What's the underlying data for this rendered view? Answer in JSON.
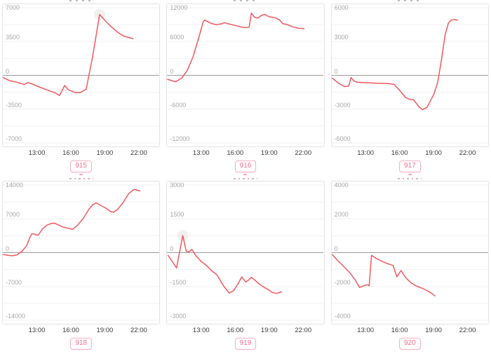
{
  "colors": {
    "line": "#f1585e",
    "zero_line": "#9b9b9b",
    "grid_line": "#f1f1f1",
    "panel_border": "#e3e3e3",
    "y_label": "#a8a8a8",
    "x_label": "#3a3a3a",
    "tag_border": "#f7b0c3",
    "tag_text": "#ee7093",
    "halo": "#ececec"
  },
  "x_axis": {
    "domain_hours": [
      10.0,
      23.8
    ],
    "tick_hours": [
      13,
      16,
      19,
      22
    ],
    "tick_labels": [
      "13:00",
      "16:00",
      "19:00",
      "22:00"
    ]
  },
  "chart_data": [
    {
      "type": "line",
      "tag": "915",
      "ylim": [
        -7000,
        7000
      ],
      "y_ticks": [
        7000,
        3500,
        0,
        -3500,
        -7000
      ],
      "x_tick_labels": [
        "13:00",
        "16:00",
        "19:00",
        "22:00"
      ],
      "halo_point": [
        18.54,
        6300
      ],
      "series": [
        {
          "name": "series-1",
          "points": [
            [
              10.05,
              -250
            ],
            [
              10.6,
              -550
            ],
            [
              11.2,
              -700
            ],
            [
              11.9,
              -950
            ],
            [
              12.2,
              -750
            ],
            [
              12.5,
              -850
            ],
            [
              13.2,
              -1200
            ],
            [
              14.0,
              -1550
            ],
            [
              14.6,
              -1800
            ],
            [
              15.0,
              -2100
            ],
            [
              15.45,
              -1050
            ],
            [
              15.8,
              -1500
            ],
            [
              16.3,
              -1750
            ],
            [
              16.8,
              -1800
            ],
            [
              17.1,
              -1600
            ],
            [
              17.35,
              -1450
            ],
            [
              17.9,
              1800
            ],
            [
              18.54,
              6300
            ],
            [
              19.0,
              5700
            ],
            [
              19.6,
              5000
            ],
            [
              20.2,
              4400
            ],
            [
              20.6,
              4100
            ],
            [
              21.0,
              3950
            ],
            [
              21.5,
              3800
            ]
          ]
        }
      ]
    },
    {
      "type": "line",
      "tag": "916",
      "ylim": [
        -12000,
        12000
      ],
      "y_ticks": [
        12000,
        6000,
        0,
        -6000,
        -12000
      ],
      "x_tick_labels": [
        "13:00",
        "16:00",
        "19:00",
        "22:00"
      ],
      "halo_point": null,
      "series": [
        {
          "name": "series-1",
          "points": [
            [
              10.05,
              -700
            ],
            [
              10.75,
              -1150
            ],
            [
              11.3,
              -500
            ],
            [
              11.8,
              900
            ],
            [
              12.3,
              3300
            ],
            [
              12.8,
              6600
            ],
            [
              13.2,
              9500
            ],
            [
              13.35,
              9800
            ],
            [
              13.8,
              9300
            ],
            [
              14.3,
              9000
            ],
            [
              14.75,
              9100
            ],
            [
              15.1,
              9350
            ],
            [
              15.5,
              9100
            ],
            [
              16.1,
              8800
            ],
            [
              16.6,
              8550
            ],
            [
              17.0,
              8450
            ],
            [
              17.25,
              8550
            ],
            [
              17.45,
              11050
            ],
            [
              17.7,
              10350
            ],
            [
              18.0,
              10150
            ],
            [
              18.35,
              10650
            ],
            [
              18.65,
              10800
            ],
            [
              19.0,
              10400
            ],
            [
              19.5,
              10250
            ],
            [
              19.9,
              9900
            ],
            [
              20.2,
              9200
            ],
            [
              20.6,
              9000
            ],
            [
              21.1,
              8600
            ],
            [
              21.6,
              8350
            ],
            [
              22.1,
              8300
            ]
          ]
        }
      ]
    },
    {
      "type": "line",
      "tag": "917",
      "ylim": [
        -6000,
        6000
      ],
      "y_ticks": [
        6000,
        3000,
        0,
        -3000,
        -6000
      ],
      "x_tick_labels": [
        "13:00",
        "16:00",
        "19:00",
        "22:00"
      ],
      "halo_point": null,
      "series": [
        {
          "name": "series-1",
          "points": [
            [
              10.05,
              -250
            ],
            [
              10.6,
              -700
            ],
            [
              11.15,
              -1000
            ],
            [
              11.5,
              -950
            ],
            [
              11.7,
              -200
            ],
            [
              11.95,
              -500
            ],
            [
              12.3,
              -620
            ],
            [
              13.0,
              -650
            ],
            [
              14.0,
              -700
            ],
            [
              15.0,
              -730
            ],
            [
              15.5,
              -800
            ],
            [
              16.0,
              -1350
            ],
            [
              16.5,
              -1950
            ],
            [
              16.9,
              -2150
            ],
            [
              17.2,
              -2150
            ],
            [
              17.7,
              -2800
            ],
            [
              18.0,
              -3050
            ],
            [
              18.4,
              -2850
            ],
            [
              19.0,
              -1700
            ],
            [
              19.35,
              -600
            ],
            [
              19.7,
              1500
            ],
            [
              20.0,
              3600
            ],
            [
              20.3,
              4650
            ],
            [
              20.55,
              4900
            ],
            [
              20.8,
              4950
            ],
            [
              21.1,
              4900
            ]
          ]
        }
      ]
    },
    {
      "type": "line",
      "tag": "918",
      "ylim": [
        -14000,
        14000
      ],
      "y_ticks": [
        14000,
        7000,
        0,
        -7000,
        -14000
      ],
      "x_tick_labels": [
        "13:00",
        "16:00",
        "19:00",
        "22:00"
      ],
      "halo_point": null,
      "series": [
        {
          "name": "series-1",
          "points": [
            [
              10.05,
              -400
            ],
            [
              10.8,
              -650
            ],
            [
              11.25,
              -450
            ],
            [
              11.7,
              300
            ],
            [
              12.1,
              1400
            ],
            [
              12.4,
              3200
            ],
            [
              12.55,
              3900
            ],
            [
              12.8,
              3850
            ],
            [
              13.0,
              3600
            ],
            [
              13.15,
              3700
            ],
            [
              13.5,
              4900
            ],
            [
              13.9,
              5700
            ],
            [
              14.3,
              6050
            ],
            [
              14.55,
              6100
            ],
            [
              14.9,
              5750
            ],
            [
              15.3,
              5300
            ],
            [
              15.8,
              5050
            ],
            [
              16.15,
              4800
            ],
            [
              16.6,
              5700
            ],
            [
              17.1,
              7100
            ],
            [
              17.6,
              9000
            ],
            [
              17.95,
              9950
            ],
            [
              18.25,
              10300
            ],
            [
              18.7,
              9700
            ],
            [
              19.1,
              9200
            ],
            [
              19.5,
              8500
            ],
            [
              19.75,
              8350
            ],
            [
              20.1,
              8900
            ],
            [
              20.6,
              10300
            ],
            [
              21.1,
              12200
            ],
            [
              21.5,
              12950
            ],
            [
              21.65,
              13100
            ],
            [
              21.9,
              12850
            ],
            [
              22.1,
              12800
            ]
          ]
        }
      ]
    },
    {
      "type": "line",
      "tag": "919",
      "ylim": [
        -3000,
        3000
      ],
      "y_ticks": [
        3000,
        1500,
        0,
        -1500,
        -3000
      ],
      "x_tick_labels": [
        "13:00",
        "16:00",
        "19:00",
        "22:00"
      ],
      "halo_point": [
        11.4,
        760
      ],
      "series": [
        {
          "name": "series-1",
          "points": [
            [
              10.1,
              -120
            ],
            [
              10.5,
              -420
            ],
            [
              10.85,
              -680
            ],
            [
              11.4,
              760
            ],
            [
              11.7,
              60
            ],
            [
              11.95,
              40
            ],
            [
              12.2,
              140
            ],
            [
              12.55,
              -130
            ],
            [
              13.0,
              -380
            ],
            [
              13.5,
              -580
            ],
            [
              14.0,
              -820
            ],
            [
              14.4,
              -980
            ],
            [
              15.0,
              -1480
            ],
            [
              15.5,
              -1800
            ],
            [
              15.9,
              -1680
            ],
            [
              16.25,
              -1400
            ],
            [
              16.6,
              -1080
            ],
            [
              16.95,
              -1300
            ],
            [
              17.15,
              -1240
            ],
            [
              17.45,
              -1090
            ],
            [
              17.95,
              -1310
            ],
            [
              18.45,
              -1500
            ],
            [
              18.95,
              -1640
            ],
            [
              19.3,
              -1770
            ],
            [
              19.7,
              -1810
            ],
            [
              20.1,
              -1740
            ]
          ]
        }
      ]
    },
    {
      "type": "line",
      "tag": "920",
      "ylim": [
        -4000,
        4000
      ],
      "y_ticks": [
        4000,
        2000,
        0,
        -2000,
        -4000
      ],
      "x_tick_labels": [
        "13:00",
        "16:00",
        "19:00",
        "22:00"
      ],
      "halo_point": null,
      "series": [
        {
          "name": "series-1",
          "points": [
            [
              10.05,
              -120
            ],
            [
              10.6,
              -520
            ],
            [
              11.1,
              -850
            ],
            [
              11.6,
              -1200
            ],
            [
              12.1,
              -1650
            ],
            [
              12.45,
              -2060
            ],
            [
              12.85,
              -1950
            ],
            [
              13.15,
              -1900
            ],
            [
              13.3,
              -1960
            ],
            [
              13.5,
              -160
            ],
            [
              13.9,
              -330
            ],
            [
              14.3,
              -470
            ],
            [
              14.8,
              -620
            ],
            [
              15.15,
              -700
            ],
            [
              15.4,
              -760
            ],
            [
              15.75,
              -1430
            ],
            [
              16.1,
              -1060
            ],
            [
              16.55,
              -1500
            ],
            [
              17.0,
              -1790
            ],
            [
              17.5,
              -1990
            ],
            [
              18.0,
              -2110
            ],
            [
              18.5,
              -2290
            ],
            [
              18.8,
              -2400
            ],
            [
              19.1,
              -2560
            ]
          ]
        }
      ]
    }
  ]
}
